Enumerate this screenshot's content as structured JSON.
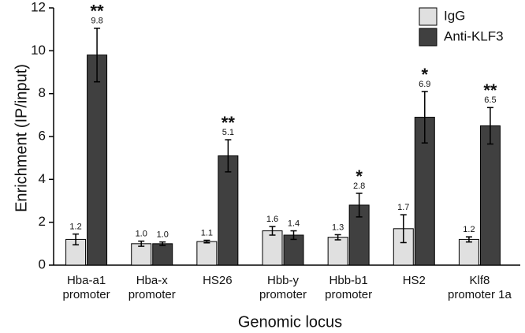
{
  "chart_data": {
    "type": "bar",
    "x_label": "Genomic locus",
    "y_label": "Enrichment (IP/input)",
    "categories": [
      [
        "Hba-a1",
        "promoter"
      ],
      [
        "Hba-x",
        "promoter"
      ],
      [
        "HS26"
      ],
      [
        "Hbb-y",
        "promoter"
      ],
      [
        "Hbb-b1",
        "promoter"
      ],
      [
        "HS2"
      ],
      [
        "Klf8",
        "promoter 1a"
      ]
    ],
    "series": [
      {
        "name": "IgG",
        "color": "#e0e0e0",
        "values": [
          1.2,
          1.0,
          1.1,
          1.6,
          1.3,
          1.7,
          1.2
        ],
        "value_labels": [
          "1.2",
          "1.0",
          "1.1",
          "1.6",
          "1.3",
          "1.7",
          "1.2"
        ],
        "errors": [
          0.25,
          0.12,
          0.06,
          0.2,
          0.12,
          0.65,
          0.12
        ]
      },
      {
        "name": "Anti-KLF3",
        "color": "#404040",
        "values": [
          9.8,
          1.0,
          5.1,
          1.4,
          2.8,
          6.9,
          6.5
        ],
        "value_labels": [
          "9.8",
          "1.0",
          "5.1",
          "1.4",
          "2.8",
          "6.9",
          "6.5"
        ],
        "errors": [
          1.25,
          0.08,
          0.75,
          0.2,
          0.55,
          1.2,
          0.85
        ],
        "significance": [
          "**",
          null,
          "**",
          null,
          "*",
          "*",
          "**"
        ]
      }
    ],
    "ylim": [
      0,
      12
    ],
    "yticks": [
      0,
      2,
      4,
      6,
      8,
      10,
      12
    ],
    "legend": "top-right",
    "grid": false
  }
}
